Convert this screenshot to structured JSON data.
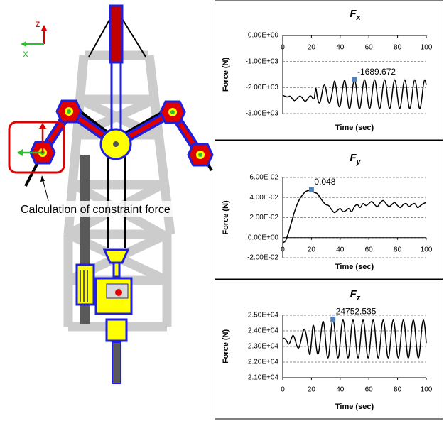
{
  "diagram": {
    "axis_z": "z",
    "axis_x": "x",
    "caption": "Calculation of constraint force"
  },
  "chart_data": [
    {
      "type": "line",
      "title": "F",
      "title_subscript": "x",
      "xlabel": "Time (sec)",
      "ylabel": "Force (N)",
      "x": [
        0,
        1,
        2,
        3,
        4,
        5,
        6,
        7,
        8,
        9,
        10,
        11,
        12,
        13,
        14,
        15,
        16,
        17,
        18,
        19,
        20,
        21,
        22,
        23,
        24,
        25,
        26,
        27,
        28,
        29,
        30,
        31,
        32,
        33,
        34,
        35,
        36,
        37,
        38,
        39,
        40,
        41,
        42,
        43,
        44,
        45,
        46,
        47,
        48,
        49,
        50,
        51,
        52,
        53,
        54,
        55,
        56,
        57,
        58,
        59,
        60,
        61,
        62,
        63,
        64,
        65,
        66,
        67,
        68,
        69,
        70,
        71,
        72,
        73,
        74,
        75,
        76,
        77,
        78,
        79,
        80,
        81,
        82,
        83,
        84,
        85,
        86,
        87,
        88,
        89,
        90,
        91,
        92,
        93,
        94,
        95,
        96,
        97,
        98,
        99,
        100
      ],
      "values": [
        -2300,
        -2320,
        -2340,
        -2360,
        -2350,
        -2330,
        -2380,
        -2450,
        -2500,
        -2480,
        -2420,
        -2360,
        -2330,
        -2360,
        -2430,
        -2500,
        -2520,
        -2460,
        -2380,
        -2320,
        -2340,
        -2420,
        -2400,
        -2032,
        -2328,
        -2565,
        -2565,
        -2328,
        -2032,
        -1900,
        -2032,
        -2328,
        -2565,
        -2565,
        -2328,
        -2032,
        -1750,
        -1938,
        -2361,
        -2700,
        -2700,
        -2361,
        -1938,
        -1720,
        -1901,
        -2375,
        -2755,
        -2755,
        -2375,
        -1901,
        -1689.672,
        -1901,
        -2375,
        -2755,
        -2755,
        -2375,
        -1901,
        -1700,
        -1901,
        -2375,
        -2755,
        -2755,
        -2375,
        -1901,
        -1700,
        -1901,
        -2375,
        -2755,
        -2755,
        -2375,
        -1901,
        -1700,
        -1901,
        -2375,
        -2755,
        -2755,
        -2375,
        -1901,
        -1700,
        -1901,
        -2375,
        -2755,
        -2755,
        -2375,
        -1901,
        -1700,
        -1901,
        -2375,
        -2755,
        -2755,
        -2375,
        -1901,
        -1700,
        -1901,
        -2375,
        -2755,
        -2755,
        -2375,
        -1901,
        -1700,
        -1901
      ],
      "color": "#000000",
      "marker_color": "#4f81bd",
      "labeled_points": [
        50
      ],
      "xlim": [
        0,
        100
      ],
      "xticks": [
        0,
        20,
        40,
        60,
        80,
        100
      ],
      "ylim": [
        -3000,
        0
      ],
      "yticks": [
        {
          "value": -3000,
          "label": "-3.00E+03"
        },
        {
          "value": -2000,
          "label": "-2.00E+03"
        },
        {
          "value": -1000,
          "label": "-1.00E+03"
        },
        {
          "value": 0,
          "label": "0.00E+00"
        }
      ],
      "grid": true
    },
    {
      "type": "line",
      "title": "F",
      "title_subscript": "y",
      "xlabel": "Time (sec)",
      "ylabel": "Force (N)",
      "x": [
        0,
        2,
        4,
        6,
        8,
        10,
        12,
        14,
        16,
        18,
        20,
        22,
        24,
        26,
        28,
        30,
        32,
        34,
        36,
        38,
        40,
        42,
        44,
        46,
        48,
        50,
        52,
        54,
        56,
        58,
        60,
        62,
        64,
        66,
        68,
        70,
        72,
        74,
        76,
        78,
        80,
        82,
        84,
        86,
        88,
        90,
        92,
        94,
        96,
        98,
        100
      ],
      "values": [
        -0.005,
        -0.003,
        0.005,
        0.015,
        0.025,
        0.033,
        0.039,
        0.043,
        0.046,
        0.047,
        0.048,
        0.045,
        0.044,
        0.04,
        0.036,
        0.033,
        0.032,
        0.028,
        0.025,
        0.027,
        0.029,
        0.026,
        0.027,
        0.029,
        0.026,
        0.031,
        0.033,
        0.03,
        0.034,
        0.032,
        0.034,
        0.036,
        0.033,
        0.031,
        0.035,
        0.037,
        0.034,
        0.031,
        0.033,
        0.035,
        0.032,
        0.03,
        0.033,
        0.034,
        0.031,
        0.033,
        0.034,
        0.03,
        0.032,
        0.034,
        0.035
      ],
      "color": "#000000",
      "marker_color": "#4f81bd",
      "labeled_points": [
        10
      ],
      "xlim": [
        0,
        100
      ],
      "xticks": [
        0,
        20,
        40,
        60,
        80,
        100
      ],
      "ylim": [
        -0.02,
        0.06
      ],
      "yticks": [
        {
          "value": -0.02,
          "label": "-2.00E-02"
        },
        {
          "value": 0,
          "label": "0.00E+00"
        },
        {
          "value": 0.02,
          "label": "2.00E-02"
        },
        {
          "value": 0.04,
          "label": "4.00E-02"
        },
        {
          "value": 0.06,
          "label": "6.00E-02"
        }
      ],
      "grid": true
    },
    {
      "type": "line",
      "title": "F",
      "title_subscript": "z",
      "xlabel": "Time (sec)",
      "ylabel": "Force (N)",
      "x": [
        0,
        1,
        2,
        3,
        4,
        5,
        6,
        7,
        8,
        9,
        10,
        11,
        12,
        13,
        14,
        15,
        16,
        17,
        18,
        19,
        20,
        21,
        22,
        23,
        24,
        25,
        26,
        27,
        28,
        29,
        30,
        31,
        32,
        33,
        34,
        35,
        36,
        37,
        38,
        39,
        40,
        41,
        42,
        43,
        44,
        45,
        46,
        47,
        48,
        49,
        50,
        51,
        52,
        53,
        54,
        55,
        56,
        57,
        58,
        59,
        60,
        61,
        62,
        63,
        64,
        65,
        66,
        67,
        68,
        69,
        70,
        71,
        72,
        73,
        74,
        75,
        76,
        77,
        78,
        79,
        80,
        81,
        82,
        83,
        84,
        85,
        86,
        87,
        88,
        89,
        90,
        91,
        92,
        93,
        94,
        95,
        96,
        97,
        98,
        99,
        100
      ],
      "values": [
        23500,
        23520,
        23450,
        23300,
        23150,
        23250,
        23500,
        23700,
        23600,
        23300,
        23000,
        22900,
        23100,
        23500,
        23900,
        24100,
        23900,
        23400,
        22800,
        22500,
        23300,
        24300,
        24123,
        23277,
        22599,
        22599,
        23277,
        24123,
        24600,
        24279,
        23221,
        22374,
        22374,
        23221,
        24279,
        24752.535,
        24279,
        23221,
        22374,
        22374,
        23221,
        24279,
        24700,
        24279,
        23221,
        22374,
        22374,
        23221,
        24279,
        24700,
        24279,
        23221,
        22374,
        22374,
        23221,
        24279,
        24700,
        24279,
        23221,
        22374,
        22374,
        23221,
        24279,
        24700,
        24279,
        23221,
        22374,
        22374,
        23221,
        24279,
        24700,
        24279,
        23221,
        22374,
        22374,
        23221,
        24279,
        24700,
        24279,
        23221,
        22374,
        22374,
        23221,
        24279,
        24700,
        24279,
        23221,
        22374,
        22374,
        23221,
        24279,
        24700,
        24279,
        23221,
        22374,
        22374,
        23221,
        24279,
        24700,
        24279,
        23221
      ],
      "color": "#000000",
      "marker_color": "#4f81bd",
      "labeled_points": [
        35
      ],
      "xlim": [
        0,
        100
      ],
      "xticks": [
        0,
        20,
        40,
        60,
        80,
        100
      ],
      "ylim": [
        21000,
        25000
      ],
      "yticks": [
        {
          "value": 21000,
          "label": "2.10E+04"
        },
        {
          "value": 22000,
          "label": "2.20E+04"
        },
        {
          "value": 23000,
          "label": "2.30E+04"
        },
        {
          "value": 24000,
          "label": "2.40E+04"
        },
        {
          "value": 25000,
          "label": "2.50E+04"
        }
      ],
      "grid": true
    }
  ]
}
